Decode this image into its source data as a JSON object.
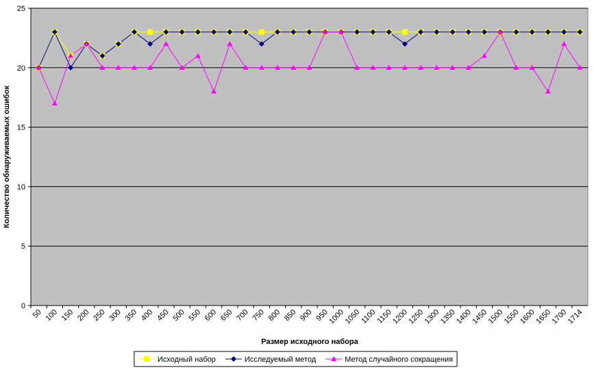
{
  "chart_data": {
    "type": "line",
    "xlabel": "Размер исходного набора",
    "ylabel": "Количество обнаруживаемых ошибок",
    "categories": [
      "50",
      "100",
      "150",
      "200",
      "250",
      "300",
      "350",
      "400",
      "450",
      "500",
      "550",
      "600",
      "650",
      "700",
      "750",
      "800",
      "850",
      "900",
      "950",
      "1000",
      "1050",
      "1100",
      "1150",
      "1200",
      "1250",
      "1300",
      "1350",
      "1400",
      "1450",
      "1500",
      "1550",
      "1600",
      "1650",
      "1700",
      "1714"
    ],
    "series": [
      {
        "name": "Исходный набор",
        "color": "#ffff00",
        "marker": "square",
        "values": [
          20,
          23,
          21,
          22,
          21,
          22,
          23,
          23,
          23,
          23,
          23,
          23,
          23,
          23,
          23,
          23,
          23,
          23,
          23,
          23,
          23,
          23,
          23,
          23,
          23,
          23,
          23,
          23,
          23,
          23,
          23,
          23,
          23,
          23,
          23
        ]
      },
      {
        "name": "Исследуемый метод",
        "color": "#000080",
        "marker": "diamond",
        "values": [
          20,
          23,
          20,
          22,
          21,
          22,
          23,
          22,
          23,
          23,
          23,
          23,
          23,
          23,
          22,
          23,
          23,
          23,
          23,
          23,
          23,
          23,
          23,
          22,
          23,
          23,
          23,
          23,
          23,
          23,
          23,
          23,
          23,
          23,
          23
        ]
      },
      {
        "name": "Метод случайного сокращения",
        "color": "#ff00ff",
        "marker": "triangle",
        "values": [
          20,
          17,
          21,
          22,
          20,
          20,
          20,
          20,
          22,
          20,
          21,
          18,
          22,
          20,
          20,
          20,
          20,
          20,
          23,
          23,
          20,
          20,
          20,
          20,
          20,
          20,
          20,
          20,
          21,
          23,
          20,
          20,
          18,
          22,
          20
        ]
      }
    ],
    "ylim": [
      0,
      25
    ],
    "yticks": [
      0,
      5,
      10,
      15,
      20,
      25
    ],
    "grid": true,
    "legend": "bottom"
  }
}
